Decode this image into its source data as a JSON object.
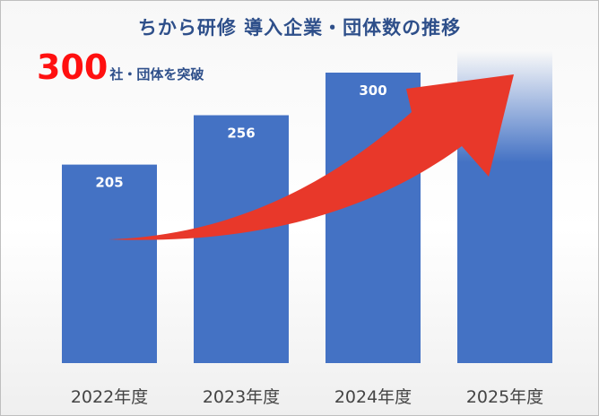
{
  "title": "ちから研修 導入企業・団体数の推移",
  "headline": {
    "number": "300",
    "text": "社・団体を突破"
  },
  "colors": {
    "bar": "#4472c4",
    "arrow": "#e8382a",
    "title": "#2e4f8a",
    "headline_number": "#ff1010"
  },
  "chart_data": {
    "type": "bar",
    "title": "ちから研修 導入企業・団体数の推移",
    "categories": [
      "2022年度",
      "2023年度",
      "2024年度",
      "2025年度"
    ],
    "values": [
      205,
      256,
      300,
      null
    ],
    "data_labels": [
      "205",
      "256",
      "300",
      ""
    ],
    "fade_top_category": "2025年度",
    "ylim": [
      0,
      300
    ],
    "grid": false,
    "legend": "none",
    "annotation": "growth arrow rising from 2022年度 toward 2025年度"
  }
}
